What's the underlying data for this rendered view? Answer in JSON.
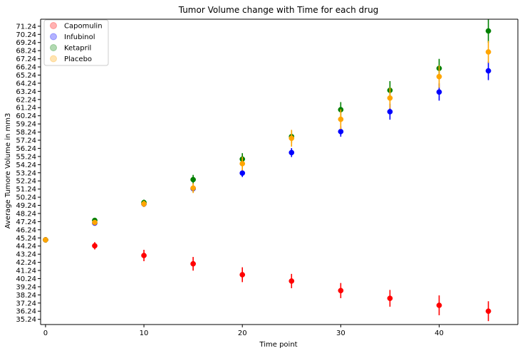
{
  "chart_data": {
    "type": "scatter",
    "title": "Tumor Volume change with Time for each drug",
    "xlabel": "Time point",
    "ylabel": "Average Tumore Volume in mm3",
    "xlim": [
      -0.5,
      48
    ],
    "ylim": [
      34.6,
      72.1
    ],
    "x_ticks": [
      0,
      10,
      20,
      30,
      40
    ],
    "y_ticks": [
      "35.24",
      "36.24",
      "37.24",
      "38.24",
      "39.24",
      "40.24",
      "41.24",
      "42.24",
      "43.24",
      "44.24",
      "45.24",
      "46.24",
      "47.24",
      "48.24",
      "49.24",
      "50.24",
      "51.24",
      "52.24",
      "53.24",
      "54.24",
      "55.24",
      "56.24",
      "57.24",
      "58.24",
      "59.24",
      "60.24",
      "61.24",
      "62.24",
      "63.24",
      "64.24",
      "65.24",
      "66.24",
      "67.24",
      "68.24",
      "69.24",
      "70.24",
      "71.24"
    ],
    "grid": false,
    "legend_position": "top-left",
    "x": [
      0,
      5,
      10,
      15,
      20,
      25,
      30,
      35,
      40,
      45
    ],
    "series": [
      {
        "name": "Capomulin",
        "color": "#ff0000",
        "values": [
          45.0,
          44.27,
          43.08,
          42.06,
          40.72,
          39.94,
          38.77,
          37.82,
          36.96,
          36.24
        ],
        "errors": [
          0.0,
          0.45,
          0.7,
          0.84,
          0.91,
          0.88,
          0.93,
          1.03,
          1.22,
          1.22
        ]
      },
      {
        "name": "Infubinol",
        "color": "#0000ff",
        "values": [
          45.0,
          47.06,
          49.4,
          51.3,
          53.2,
          55.72,
          58.3,
          60.74,
          63.16,
          65.76
        ],
        "errors": [
          0.0,
          0.24,
          0.28,
          0.36,
          0.48,
          0.55,
          0.63,
          0.98,
          1.06,
          1.14
        ]
      },
      {
        "name": "Ketapril",
        "color": "#008000",
        "values": [
          45.0,
          47.39,
          49.58,
          52.4,
          54.92,
          57.68,
          60.99,
          63.37,
          66.07,
          70.66
        ],
        "errors": [
          0.0,
          0.26,
          0.36,
          0.58,
          0.73,
          0.76,
          0.93,
          1.13,
          1.16,
          1.45
        ]
      },
      {
        "name": "Placebo",
        "color": "#ffa500",
        "values": [
          45.0,
          47.13,
          49.42,
          51.36,
          54.36,
          57.48,
          59.81,
          62.42,
          65.05,
          68.08
        ],
        "errors": [
          0.0,
          0.22,
          0.4,
          0.61,
          0.84,
          1.03,
          1.22,
          1.29,
          1.37,
          1.35
        ]
      }
    ]
  }
}
